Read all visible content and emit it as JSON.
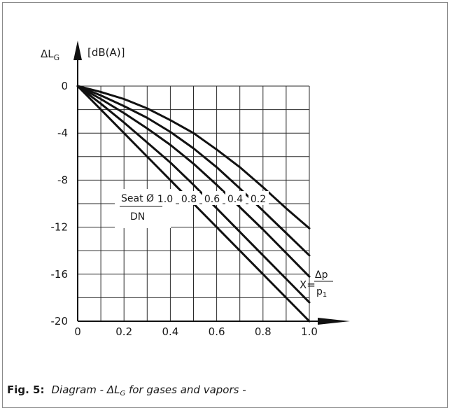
{
  "caption": {
    "fig_label": "Fig. 5:",
    "desc_prefix": "Diagram - ΔL",
    "desc_sub": "G",
    "desc_suffix": " for gases and vapors -"
  },
  "chart_data": {
    "type": "line",
    "title": "",
    "ylabel_main": "ΔL",
    "ylabel_sub": "G",
    "yunit": "[dB(A)]",
    "xlabel_prefix": "X=",
    "xlabel_num": "Δp",
    "xlabel_den": "p",
    "xlabel_den_sub": "1",
    "legend_num": "Seat Ø",
    "legend_den": "DN",
    "xlim": [
      0,
      1.0
    ],
    "ylim": [
      -20,
      0
    ],
    "x_ticks": [
      "0",
      "0.2",
      "0.4",
      "0.6",
      "0.8",
      "1.0"
    ],
    "y_ticks": [
      "0",
      "-4",
      "-8",
      "-12",
      "-16",
      "-20"
    ],
    "grid": true,
    "series": [
      {
        "name": "1.0",
        "x": [
          0,
          0.1,
          0.2,
          0.3,
          0.4,
          0.5,
          0.6,
          0.7,
          0.8,
          0.9,
          1.0
        ],
        "y": [
          0,
          -2,
          -4,
          -6,
          -8,
          -10,
          -12,
          -14,
          -16,
          -18,
          -20
        ]
      },
      {
        "name": "0.8",
        "x": [
          0,
          0.1,
          0.2,
          0.3,
          0.4,
          0.5,
          0.6,
          0.7,
          0.8,
          0.9,
          1.0
        ],
        "y": [
          0,
          -1.5,
          -3.1,
          -4.8,
          -6.5,
          -8.4,
          -10.4,
          -12.4,
          -14.4,
          -16.4,
          -18.4
        ]
      },
      {
        "name": "0.6",
        "x": [
          0,
          0.1,
          0.2,
          0.3,
          0.4,
          0.5,
          0.6,
          0.7,
          0.8,
          0.9,
          1.0
        ],
        "y": [
          0,
          -1.1,
          -2.3,
          -3.6,
          -5.0,
          -6.6,
          -8.4,
          -10.3,
          -12.2,
          -14.2,
          -16.2
        ]
      },
      {
        "name": "0.4",
        "x": [
          0,
          0.1,
          0.2,
          0.3,
          0.4,
          0.5,
          0.6,
          0.7,
          0.8,
          0.9,
          1.0
        ],
        "y": [
          0,
          -0.8,
          -1.7,
          -2.7,
          -3.9,
          -5.3,
          -6.9,
          -8.7,
          -10.6,
          -12.5,
          -14.4
        ]
      },
      {
        "name": "0.2",
        "x": [
          0,
          0.1,
          0.2,
          0.3,
          0.4,
          0.5,
          0.6,
          0.7,
          0.8,
          0.9,
          1.0
        ],
        "y": [
          0,
          -0.5,
          -1.1,
          -1.9,
          -2.9,
          -4.0,
          -5.4,
          -6.9,
          -8.6,
          -10.4,
          -12.1
        ]
      }
    ]
  }
}
